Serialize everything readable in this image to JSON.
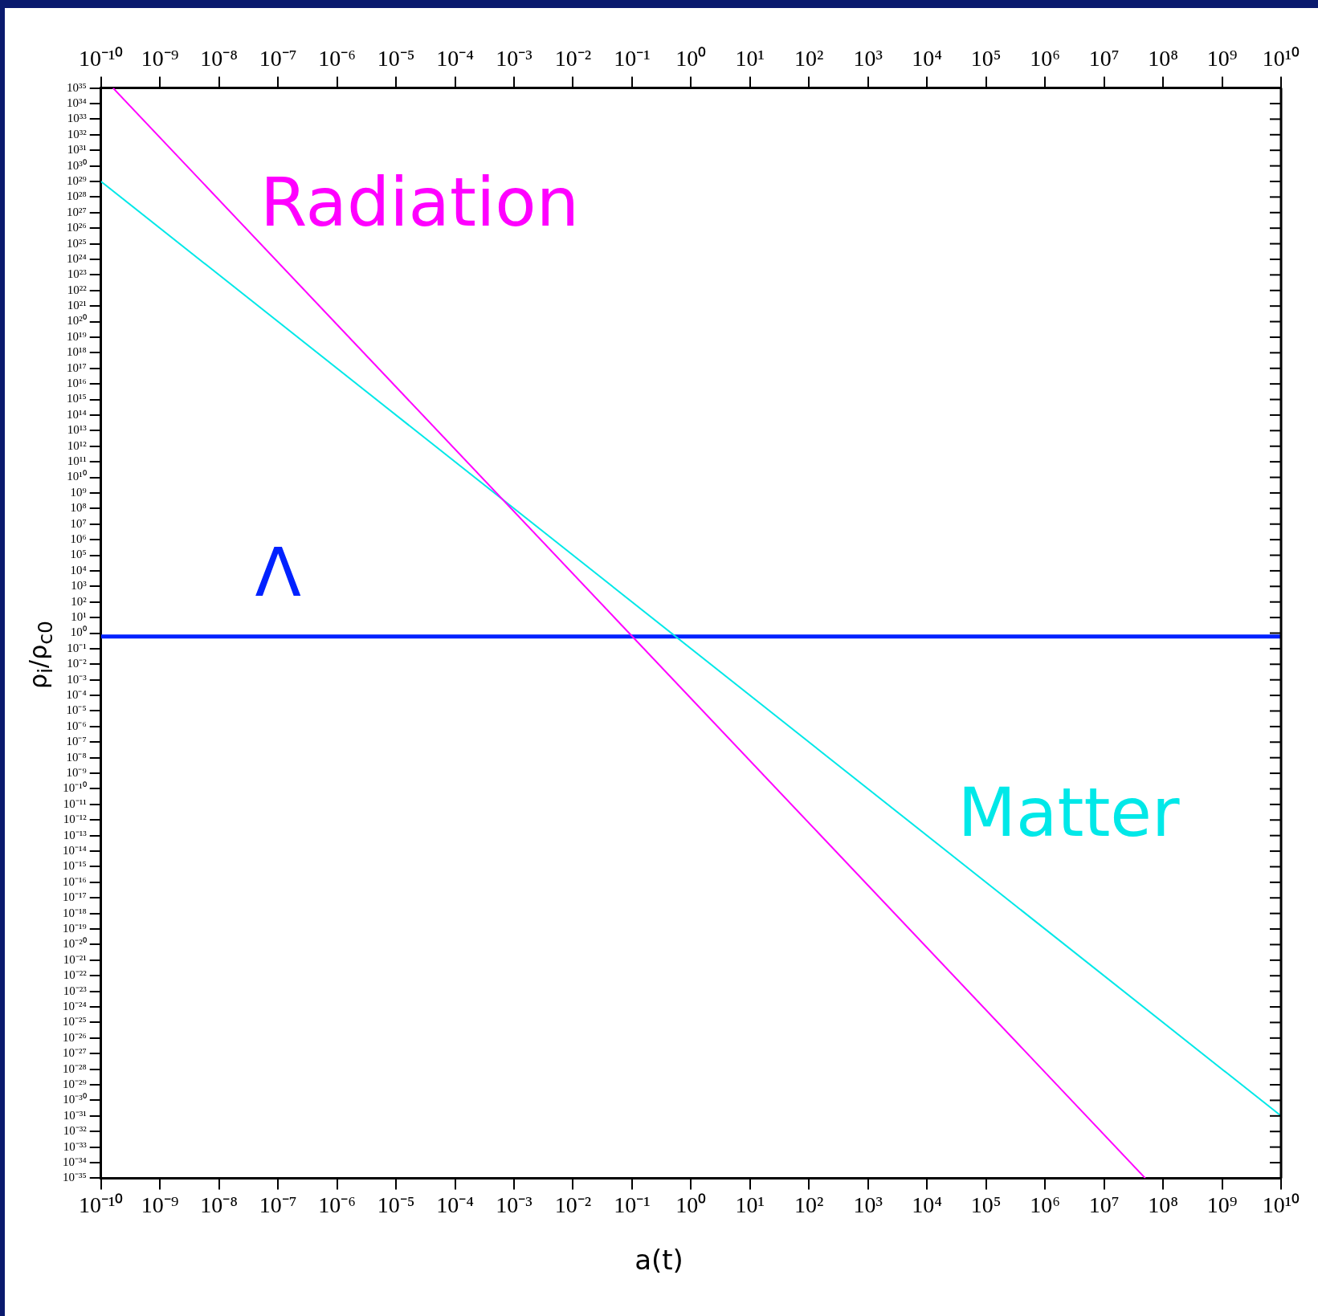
{
  "chart_data": {
    "type": "line",
    "xlabel": "a(t)",
    "ylabel": "ρ$_{i}$/ρ$_{c0}$",
    "log": "xy",
    "grid": false,
    "legend": false,
    "marker": "none",
    "line_style": "solid",
    "xlim": [
      1e-10,
      10000000000.0
    ],
    "ylim": [
      1e-35,
      1e+35
    ],
    "xticks": [
      {
        "value": 1e-10,
        "label": "10⁻¹⁰"
      },
      {
        "value": 1e-09,
        "label": "10⁻⁹"
      },
      {
        "value": 1e-08,
        "label": "10⁻⁸"
      },
      {
        "value": 1e-07,
        "label": "10⁻⁷"
      },
      {
        "value": 1e-06,
        "label": "10⁻⁶"
      },
      {
        "value": 1e-05,
        "label": "10⁻⁵"
      },
      {
        "value": 0.0001,
        "label": "10⁻⁴"
      },
      {
        "value": 0.001,
        "label": "10⁻³"
      },
      {
        "value": 0.01,
        "label": "10⁻²"
      },
      {
        "value": 0.1,
        "label": "10⁻¹"
      },
      {
        "value": 1,
        "label": "10⁰"
      },
      {
        "value": 10.0,
        "label": "10¹"
      },
      {
        "value": 100.0,
        "label": "10²"
      },
      {
        "value": 1000.0,
        "label": "10³"
      },
      {
        "value": 10000.0,
        "label": "10⁴"
      },
      {
        "value": 100000.0,
        "label": "10⁵"
      },
      {
        "value": 1000000.0,
        "label": "10⁶"
      },
      {
        "value": 10000000.0,
        "label": "10⁷"
      },
      {
        "value": 100000000.0,
        "label": "10⁸"
      },
      {
        "value": 1000000000.0,
        "label": "10⁹"
      },
      {
        "value": 10000000000.0,
        "label": "10¹⁰"
      }
    ],
    "yticks": [
      {
        "value": 1e+35,
        "label": "10³⁵"
      },
      {
        "value": 1e+34,
        "label": "10³⁴"
      },
      {
        "value": 1e+33,
        "label": "10³³"
      },
      {
        "value": 1e+32,
        "label": "10³²"
      },
      {
        "value": 1e+31,
        "label": "10³¹"
      },
      {
        "value": 1e+30,
        "label": "10³⁰"
      },
      {
        "value": 1e+29,
        "label": "10²⁹"
      },
      {
        "value": 1e+28,
        "label": "10²⁸"
      },
      {
        "value": 1e+27,
        "label": "10²⁷"
      },
      {
        "value": 1e+26,
        "label": "10²⁶"
      },
      {
        "value": 1e+25,
        "label": "10²⁵"
      },
      {
        "value": 1e+24,
        "label": "10²⁴"
      },
      {
        "value": 1e+23,
        "label": "10²³"
      },
      {
        "value": 1e+22,
        "label": "10²²"
      },
      {
        "value": 1e+21,
        "label": "10²¹"
      },
      {
        "value": 1e+20,
        "label": "10²⁰"
      },
      {
        "value": 1e+19,
        "label": "10¹⁹"
      },
      {
        "value": 1e+18,
        "label": "10¹⁸"
      },
      {
        "value": 1e+17,
        "label": "10¹⁷"
      },
      {
        "value": 1e+16,
        "label": "10¹⁶"
      },
      {
        "value": 1000000000000000.0,
        "label": "10¹⁵"
      },
      {
        "value": 100000000000000.0,
        "label": "10¹⁴"
      },
      {
        "value": 10000000000000.0,
        "label": "10¹³"
      },
      {
        "value": 1000000000000.0,
        "label": "10¹²"
      },
      {
        "value": 100000000000.0,
        "label": "10¹¹"
      },
      {
        "value": 10000000000.0,
        "label": "10¹⁰"
      },
      {
        "value": 1000000000.0,
        "label": "10⁹"
      },
      {
        "value": 100000000.0,
        "label": "10⁸"
      },
      {
        "value": 10000000.0,
        "label": "10⁷"
      },
      {
        "value": 1000000.0,
        "label": "10⁶"
      },
      {
        "value": 100000.0,
        "label": "10⁵"
      },
      {
        "value": 10000.0,
        "label": "10⁴"
      },
      {
        "value": 1000.0,
        "label": "10³"
      },
      {
        "value": 100.0,
        "label": "10²"
      },
      {
        "value": 10.0,
        "label": "10¹"
      },
      {
        "value": 1,
        "label": "10⁰"
      },
      {
        "value": 0.1,
        "label": "10⁻¹"
      },
      {
        "value": 0.01,
        "label": "10⁻²"
      },
      {
        "value": 0.001,
        "label": "10⁻³"
      },
      {
        "value": 0.0001,
        "label": "10⁻⁴"
      },
      {
        "value": 1e-05,
        "label": "10⁻⁵"
      },
      {
        "value": 1e-06,
        "label": "10⁻⁶"
      },
      {
        "value": 1e-07,
        "label": "10⁻⁷"
      },
      {
        "value": 1e-08,
        "label": "10⁻⁸"
      },
      {
        "value": 1e-09,
        "label": "10⁻⁹"
      },
      {
        "value": 1e-10,
        "label": "10⁻¹⁰"
      },
      {
        "value": 1e-11,
        "label": "10⁻¹¹"
      },
      {
        "value": 1e-12,
        "label": "10⁻¹²"
      },
      {
        "value": 1e-13,
        "label": "10⁻¹³"
      },
      {
        "value": 1e-14,
        "label": "10⁻¹⁴"
      },
      {
        "value": 1e-15,
        "label": "10⁻¹⁵"
      },
      {
        "value": 1e-16,
        "label": "10⁻¹⁶"
      },
      {
        "value": 1e-17,
        "label": "10⁻¹⁷"
      },
      {
        "value": 1e-18,
        "label": "10⁻¹⁸"
      },
      {
        "value": 1e-19,
        "label": "10⁻¹⁹"
      },
      {
        "value": 1e-20,
        "label": "10⁻²⁰"
      },
      {
        "value": 1e-21,
        "label": "10⁻²¹"
      },
      {
        "value": 1e-22,
        "label": "10⁻²²"
      },
      {
        "value": 1e-23,
        "label": "10⁻²³"
      },
      {
        "value": 1e-24,
        "label": "10⁻²⁴"
      },
      {
        "value": 1e-25,
        "label": "10⁻²⁵"
      },
      {
        "value": 1e-26,
        "label": "10⁻²⁶"
      },
      {
        "value": 1e-27,
        "label": "10⁻²⁷"
      },
      {
        "value": 1e-28,
        "label": "10⁻²⁸"
      },
      {
        "value": 1e-29,
        "label": "10⁻²⁹"
      },
      {
        "value": 1e-30,
        "label": "10⁻³⁰"
      },
      {
        "value": 1e-31,
        "label": "10⁻³¹"
      },
      {
        "value": 1e-32,
        "label": "10⁻³²"
      },
      {
        "value": 1e-33,
        "label": "10⁻³³"
      },
      {
        "value": 1e-34,
        "label": "10⁻³⁴"
      },
      {
        "value": 1e-35,
        "label": "10⁻³⁵"
      }
    ],
    "series": [
      {
        "name": "Radiation",
        "color": "#ff00ff",
        "x": [
          1.6e-10,
          50000000.0
        ],
        "values": [
          1e+35,
          1e-35
        ]
      },
      {
        "name": "Matter",
        "color": "#00e8e8",
        "x": [
          1e-10,
          10000000000.0
        ],
        "values": [
          1e+29,
          1e-31
        ]
      },
      {
        "name": "Λ",
        "color": "#0022ff",
        "x": [
          1e-10,
          10000000000.0
        ],
        "values": [
          0.6,
          0.6
        ]
      }
    ]
  }
}
